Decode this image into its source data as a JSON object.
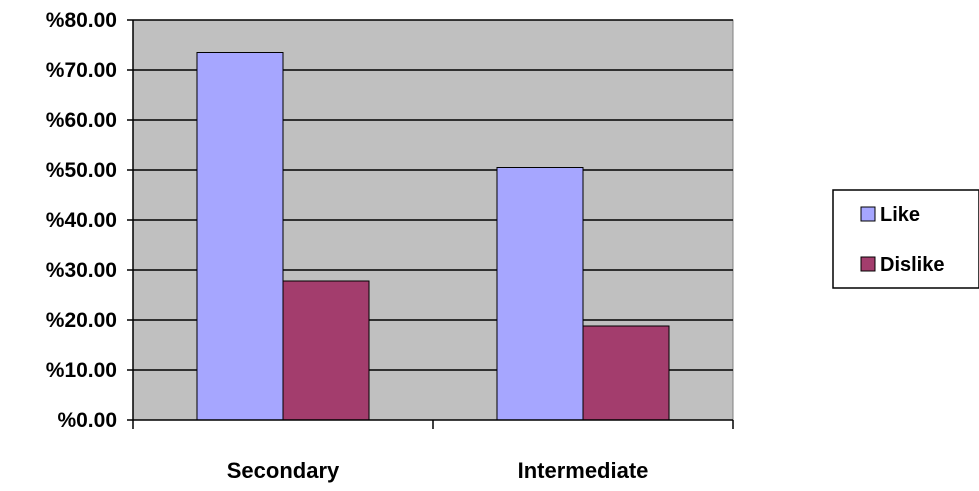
{
  "chart_data": {
    "type": "bar",
    "categories": [
      "Secondary",
      "Intermediate"
    ],
    "series": [
      {
        "name": "Like",
        "values": [
          73.5,
          50.5
        ],
        "color": "#a6a6ff"
      },
      {
        "name": "Dislike",
        "values": [
          27.8,
          18.8
        ],
        "color": "#a33d6d"
      }
    ],
    "y_tick_labels": [
      "%0.00",
      "%10.00",
      "%20.00",
      "%30.00",
      "%40.00",
      "%50.00",
      "%60.00",
      "%70.00",
      "%80.00"
    ],
    "ylim": [
      0,
      80
    ],
    "y_tick_step": 10,
    "grid": true,
    "plot_background": "#c0c0c0",
    "legend_placement": "right",
    "title": "",
    "xlabel": "",
    "ylabel": ""
  }
}
